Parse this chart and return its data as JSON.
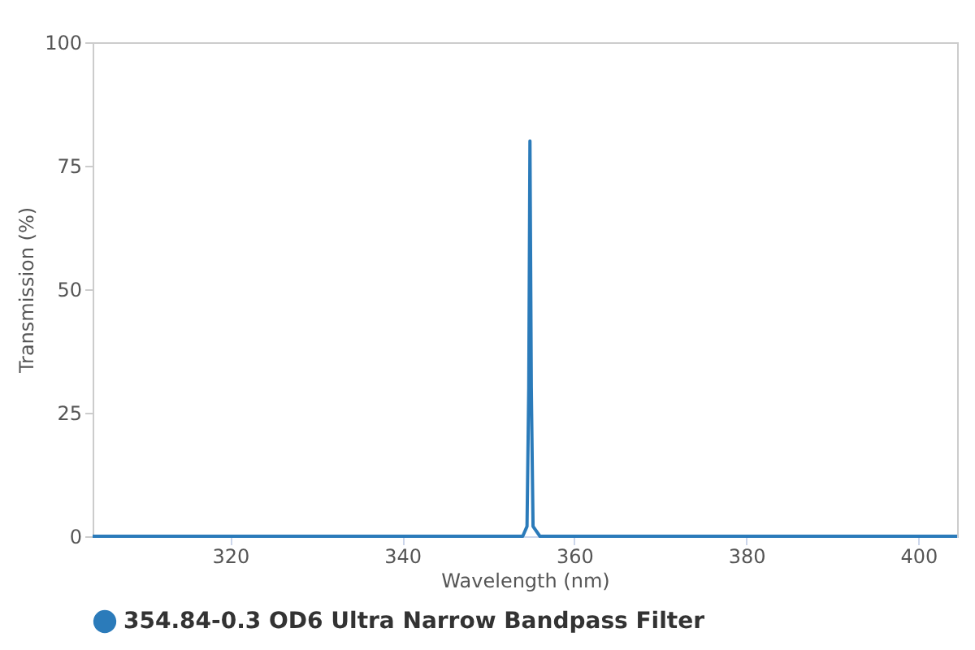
{
  "chart_data": {
    "type": "line",
    "xlabel": "Wavelength (nm)",
    "ylabel": "Transmission (%)",
    "x": [
      304,
      354,
      354.5,
      354.7,
      354.84,
      355.0,
      355.2,
      356,
      404.5
    ],
    "series": [
      {
        "name": "354.84-0.3 OD6 Ultra Narrow Bandpass Filter",
        "color": "#2b7bba",
        "values": [
          0,
          0,
          2,
          30,
          80,
          30,
          2,
          0,
          0
        ]
      }
    ],
    "xlim": [
      304,
      404.5
    ],
    "xticks": [
      320,
      340,
      360,
      380,
      400
    ],
    "ylim": [
      0,
      100
    ],
    "yticks": [
      0,
      25,
      50,
      75,
      100
    ],
    "grid": false,
    "legend": "bottom left"
  }
}
